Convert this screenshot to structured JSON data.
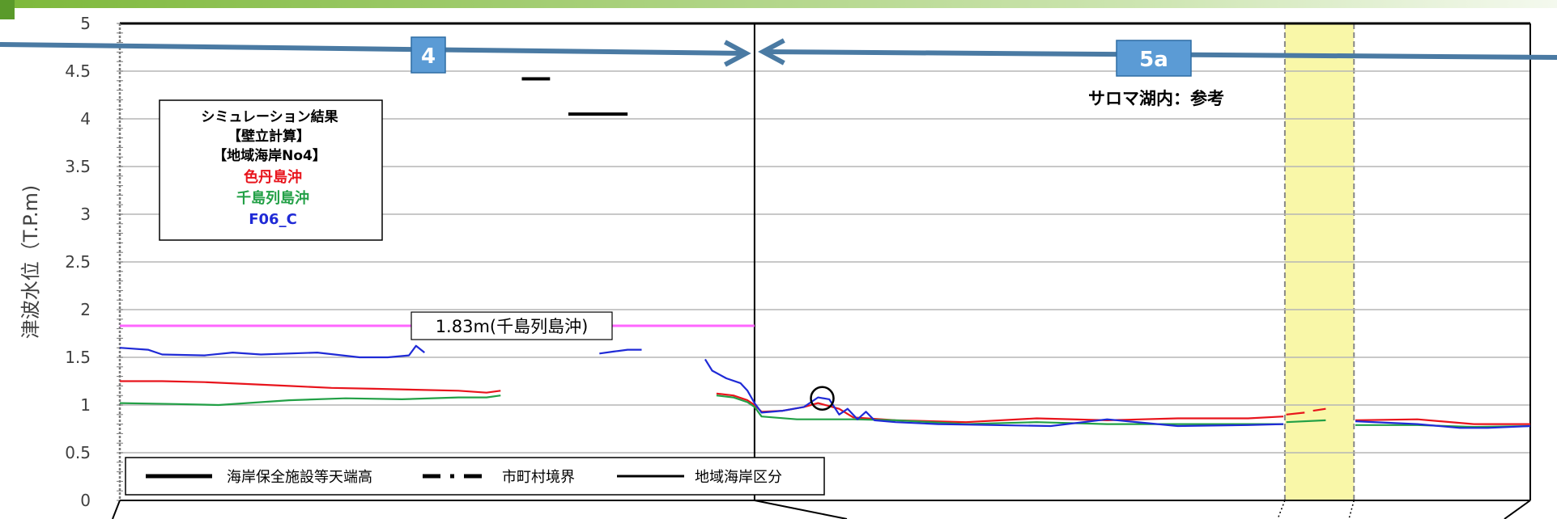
{
  "chart_data": {
    "type": "line",
    "ylabel": "津波水位（T.P.m)",
    "ylim": [
      0,
      5
    ],
    "yticks": [
      "0",
      "0.5",
      "1",
      "1.5",
      "2",
      "2.5",
      "3",
      "3.5",
      "4",
      "4.5",
      "5"
    ],
    "grid": true,
    "x_range": [
      0,
      100
    ],
    "legend_box": {
      "lines": [
        "シミュレーション結果",
        "【壁立計算】",
        "【地域海岸No4】"
      ],
      "entries": [
        {
          "label": "色丹島沖",
          "color": "#e8141c"
        },
        {
          "label": "千島列島沖",
          "color": "#22a046"
        },
        {
          "label": "F06_C",
          "color": "#1f2ad6"
        }
      ]
    },
    "zone_4_label": "4",
    "zone_5a_label": "5a",
    "zone_5a_note": "サロマ湖内：参考",
    "reference_line": {
      "value": 1.83,
      "label": "1.83m(千島列島沖)",
      "color": "#ff66ff",
      "x": [
        0,
        45
      ]
    },
    "structure_crowns": [
      {
        "x": [
          28.5,
          30.5
        ],
        "y": 4.42
      },
      {
        "x": [
          31.8,
          36.0
        ],
        "y": 4.05
      }
    ],
    "highlight_band": {
      "x": [
        82.6,
        87.5
      ],
      "color": "#f9f7a8"
    },
    "bottom_legend": [
      {
        "label": "海岸保全施設等天端高",
        "style": "solid-thick"
      },
      {
        "label": "市町村境界",
        "style": "dash-dot"
      },
      {
        "label": "地域海岸区分",
        "style": "solid-thin"
      }
    ],
    "series": [
      {
        "name": "色丹島沖",
        "color": "#e8141c",
        "segments": [
          [
            [
              0,
              1.25
            ],
            [
              3,
              1.25
            ],
            [
              6,
              1.24
            ],
            [
              9,
              1.22
            ],
            [
              12,
              1.2
            ],
            [
              15,
              1.18
            ],
            [
              18,
              1.17
            ],
            [
              21,
              1.16
            ],
            [
              24,
              1.15
            ],
            [
              26,
              1.13
            ],
            [
              27,
              1.15
            ]
          ],
          [
            [
              42.3,
              1.12
            ],
            [
              43.5,
              1.1
            ],
            [
              44.5,
              1.05
            ],
            [
              45,
              1.0
            ],
            [
              45.5,
              0.93
            ],
            [
              47,
              0.94
            ],
            [
              48.5,
              0.98
            ],
            [
              49.5,
              1.02
            ],
            [
              51,
              0.96
            ],
            [
              52,
              0.87
            ],
            [
              55,
              0.84
            ],
            [
              60,
              0.82
            ],
            [
              65,
              0.86
            ],
            [
              70,
              0.84
            ],
            [
              75,
              0.86
            ],
            [
              80,
              0.86
            ],
            [
              82.5,
              0.88
            ]
          ],
          [
            [
              82.7,
              0.9
            ],
            [
              84,
              0.92
            ]
          ],
          [
            [
              84.6,
              0.94
            ],
            [
              85.5,
              0.96
            ]
          ],
          [
            [
              87.6,
              0.84
            ],
            [
              92,
              0.85
            ],
            [
              96,
              0.8
            ],
            [
              100,
              0.8
            ]
          ]
        ]
      },
      {
        "name": "千島列島沖",
        "color": "#22a046",
        "segments": [
          [
            [
              0,
              1.02
            ],
            [
              4,
              1.01
            ],
            [
              7,
              1.0
            ],
            [
              9,
              1.02
            ],
            [
              12,
              1.05
            ],
            [
              16,
              1.07
            ],
            [
              20,
              1.06
            ],
            [
              24,
              1.08
            ],
            [
              26,
              1.08
            ],
            [
              27,
              1.1
            ]
          ],
          [
            [
              42.3,
              1.1
            ],
            [
              43.5,
              1.08
            ],
            [
              44.5,
              1.03
            ],
            [
              45,
              0.98
            ],
            [
              45.5,
              0.88
            ],
            [
              48,
              0.85
            ],
            [
              52,
              0.85
            ],
            [
              55,
              0.84
            ],
            [
              60,
              0.8
            ],
            [
              65,
              0.82
            ],
            [
              70,
              0.8
            ],
            [
              75,
              0.8
            ],
            [
              80,
              0.8
            ],
            [
              82.5,
              0.8
            ]
          ],
          [
            [
              82.7,
              0.82
            ],
            [
              85.5,
              0.84
            ]
          ],
          [
            [
              87.6,
              0.79
            ],
            [
              92,
              0.79
            ],
            [
              96,
              0.77
            ],
            [
              100,
              0.78
            ]
          ]
        ]
      },
      {
        "name": "F06_C",
        "color": "#1f2ad6",
        "segments": [
          [
            [
              0,
              1.6
            ],
            [
              2,
              1.58
            ],
            [
              3,
              1.53
            ],
            [
              6,
              1.52
            ],
            [
              8,
              1.55
            ],
            [
              10,
              1.53
            ],
            [
              14,
              1.55
            ],
            [
              17,
              1.5
            ],
            [
              19,
              1.5
            ],
            [
              20.5,
              1.52
            ],
            [
              21,
              1.62
            ],
            [
              21.6,
              1.55
            ]
          ],
          [
            [
              34,
              1.54
            ],
            [
              35,
              1.56
            ],
            [
              36,
              1.58
            ],
            [
              37,
              1.58
            ]
          ],
          [
            [
              41.5,
              1.48
            ],
            [
              42,
              1.36
            ],
            [
              43,
              1.28
            ],
            [
              44,
              1.23
            ],
            [
              44.5,
              1.15
            ],
            [
              45,
              1.02
            ],
            [
              45.5,
              0.92
            ],
            [
              47,
              0.94
            ],
            [
              48.5,
              0.98
            ],
            [
              49.5,
              1.08
            ],
            [
              50.3,
              1.06
            ],
            [
              51,
              0.9
            ],
            [
              51.6,
              0.96
            ],
            [
              52.3,
              0.85
            ],
            [
              52.9,
              0.93
            ],
            [
              53.5,
              0.84
            ],
            [
              55,
              0.82
            ],
            [
              58,
              0.8
            ],
            [
              62,
              0.79
            ],
            [
              66,
              0.78
            ],
            [
              70,
              0.85
            ],
            [
              75,
              0.78
            ],
            [
              80,
              0.79
            ],
            [
              82.5,
              0.8
            ]
          ],
          [
            [
              87.6,
              0.83
            ],
            [
              92,
              0.8
            ],
            [
              95,
              0.76
            ],
            [
              97,
              0.76
            ],
            [
              100,
              0.78
            ]
          ]
        ]
      }
    ]
  }
}
